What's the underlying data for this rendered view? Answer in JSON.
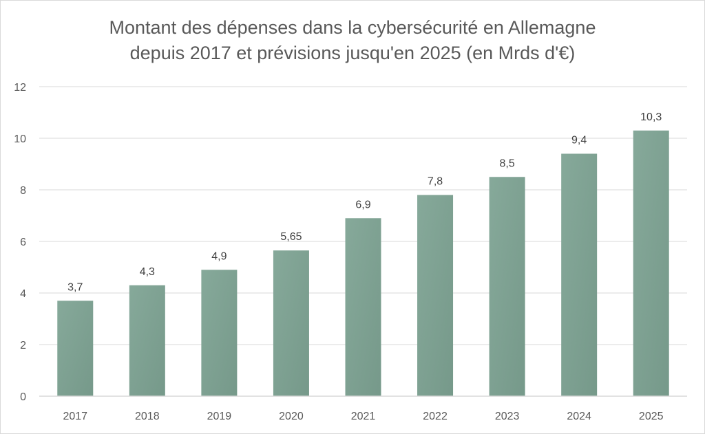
{
  "chart_data": {
    "type": "bar",
    "title_lines": [
      "Montant des dépenses dans la cybersécurité en Allemagne",
      "depuis 2017 et prévisions jusqu'en 2025 (en Mrds d'€)"
    ],
    "categories": [
      "2017",
      "2018",
      "2019",
      "2020",
      "2021",
      "2022",
      "2023",
      "2024",
      "2025"
    ],
    "values": [
      3.7,
      4.3,
      4.9,
      5.65,
      6.9,
      7.8,
      8.5,
      9.4,
      10.3
    ],
    "data_labels": [
      "3,7",
      "4,3",
      "4,9",
      "5,65",
      "6,9",
      "7,8",
      "8,5",
      "9,4",
      "10,3"
    ],
    "y_ticks": [
      "0",
      "2",
      "4",
      "6",
      "8",
      "10",
      "12"
    ],
    "ylim": [
      0,
      12
    ],
    "grid": true,
    "legend": "none",
    "colors": {
      "bar": "#86a99a",
      "bar_dark": "#76998a",
      "grid": "#d9d9d9",
      "text": "#595959"
    }
  }
}
